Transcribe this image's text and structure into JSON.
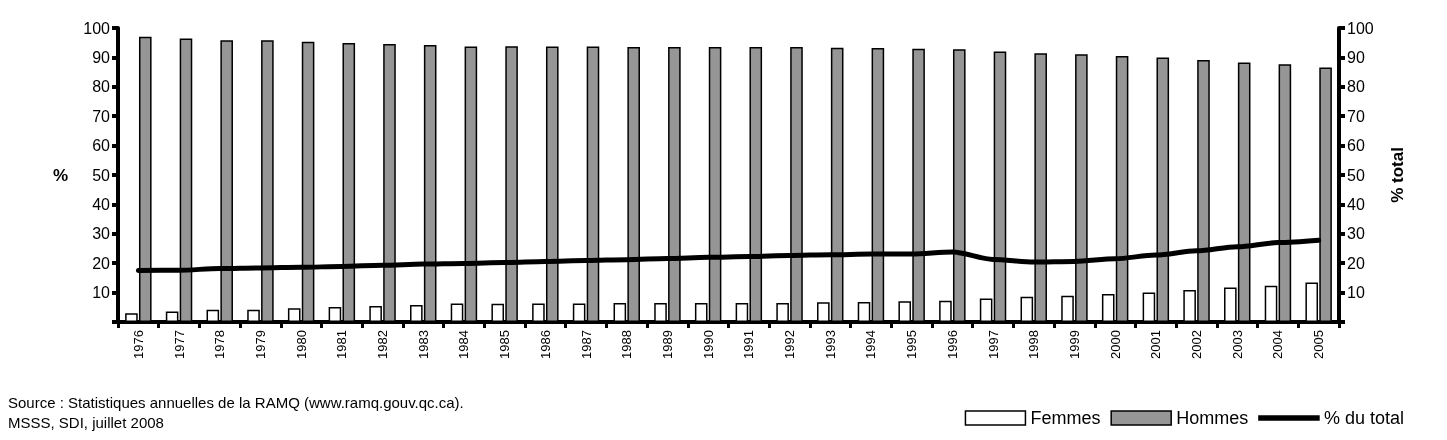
{
  "chart_data": {
    "type": "bar",
    "ylabel": "%",
    "y2label": "% total",
    "categories": [
      "1976",
      "1977",
      "1978",
      "1979",
      "1980",
      "1981",
      "1982",
      "1983",
      "1984",
      "1985",
      "1986",
      "1987",
      "1988",
      "1989",
      "1990",
      "1991",
      "1992",
      "1993",
      "1994",
      "1995",
      "1996",
      "1997",
      "1998",
      "1999",
      "2000",
      "2001",
      "2002",
      "2003",
      "2004",
      "2005"
    ],
    "series": [
      {
        "name": "Femmes",
        "color": "#ffffff",
        "values": [
          3.0,
          3.6,
          4.2,
          4.2,
          4.7,
          5.1,
          5.4,
          5.8,
          6.3,
          6.2,
          6.3,
          6.3,
          6.5,
          6.5,
          6.5,
          6.5,
          6.5,
          6.7,
          6.8,
          7.1,
          7.2,
          8.0,
          8.6,
          8.9,
          9.5,
          10.0,
          10.9,
          11.7,
          12.3,
          13.4
        ]
      },
      {
        "name": "Hommes",
        "color": "#969696",
        "values": [
          97.0,
          96.4,
          95.8,
          95.8,
          95.3,
          94.9,
          94.6,
          94.2,
          93.7,
          93.8,
          93.7,
          93.7,
          93.5,
          93.5,
          93.5,
          93.5,
          93.5,
          93.3,
          93.2,
          92.9,
          92.8,
          92.0,
          91.4,
          91.1,
          90.5,
          90.0,
          89.1,
          88.3,
          87.7,
          86.6
        ]
      },
      {
        "name": "% du total",
        "type": "line",
        "axis": "y2",
        "color": "#000000",
        "values": [
          17.5,
          17.6,
          18.2,
          18.4,
          18.6,
          18.9,
          19.3,
          19.7,
          19.9,
          20.2,
          20.6,
          20.9,
          21.2,
          21.6,
          22.0,
          22.3,
          22.6,
          22.9,
          23.1,
          23.1,
          23.8,
          21.3,
          20.4,
          20.6,
          21.5,
          22.8,
          24.2,
          25.6,
          27.0,
          27.8
        ]
      }
    ],
    "ylim": [
      0,
      100
    ],
    "yticks": [
      {
        "value": 0,
        "label": null
      },
      10,
      20,
      30,
      40,
      50,
      60,
      70,
      80,
      90,
      100
    ],
    "y2lim": [
      0,
      100
    ],
    "y2ticks": [
      {
        "value": 0,
        "label": null
      },
      10,
      20,
      30,
      40,
      50,
      60,
      70,
      80,
      90,
      100
    ],
    "grid": false,
    "legend": "bottom right",
    "marker": "none",
    "line_style": "solid",
    "annotations": [
      "Source : Statistiques annuelles de la RAMQ (www.ramq.gouv.qc.ca).",
      "MSSS, SDI, juillet 2008"
    ]
  }
}
